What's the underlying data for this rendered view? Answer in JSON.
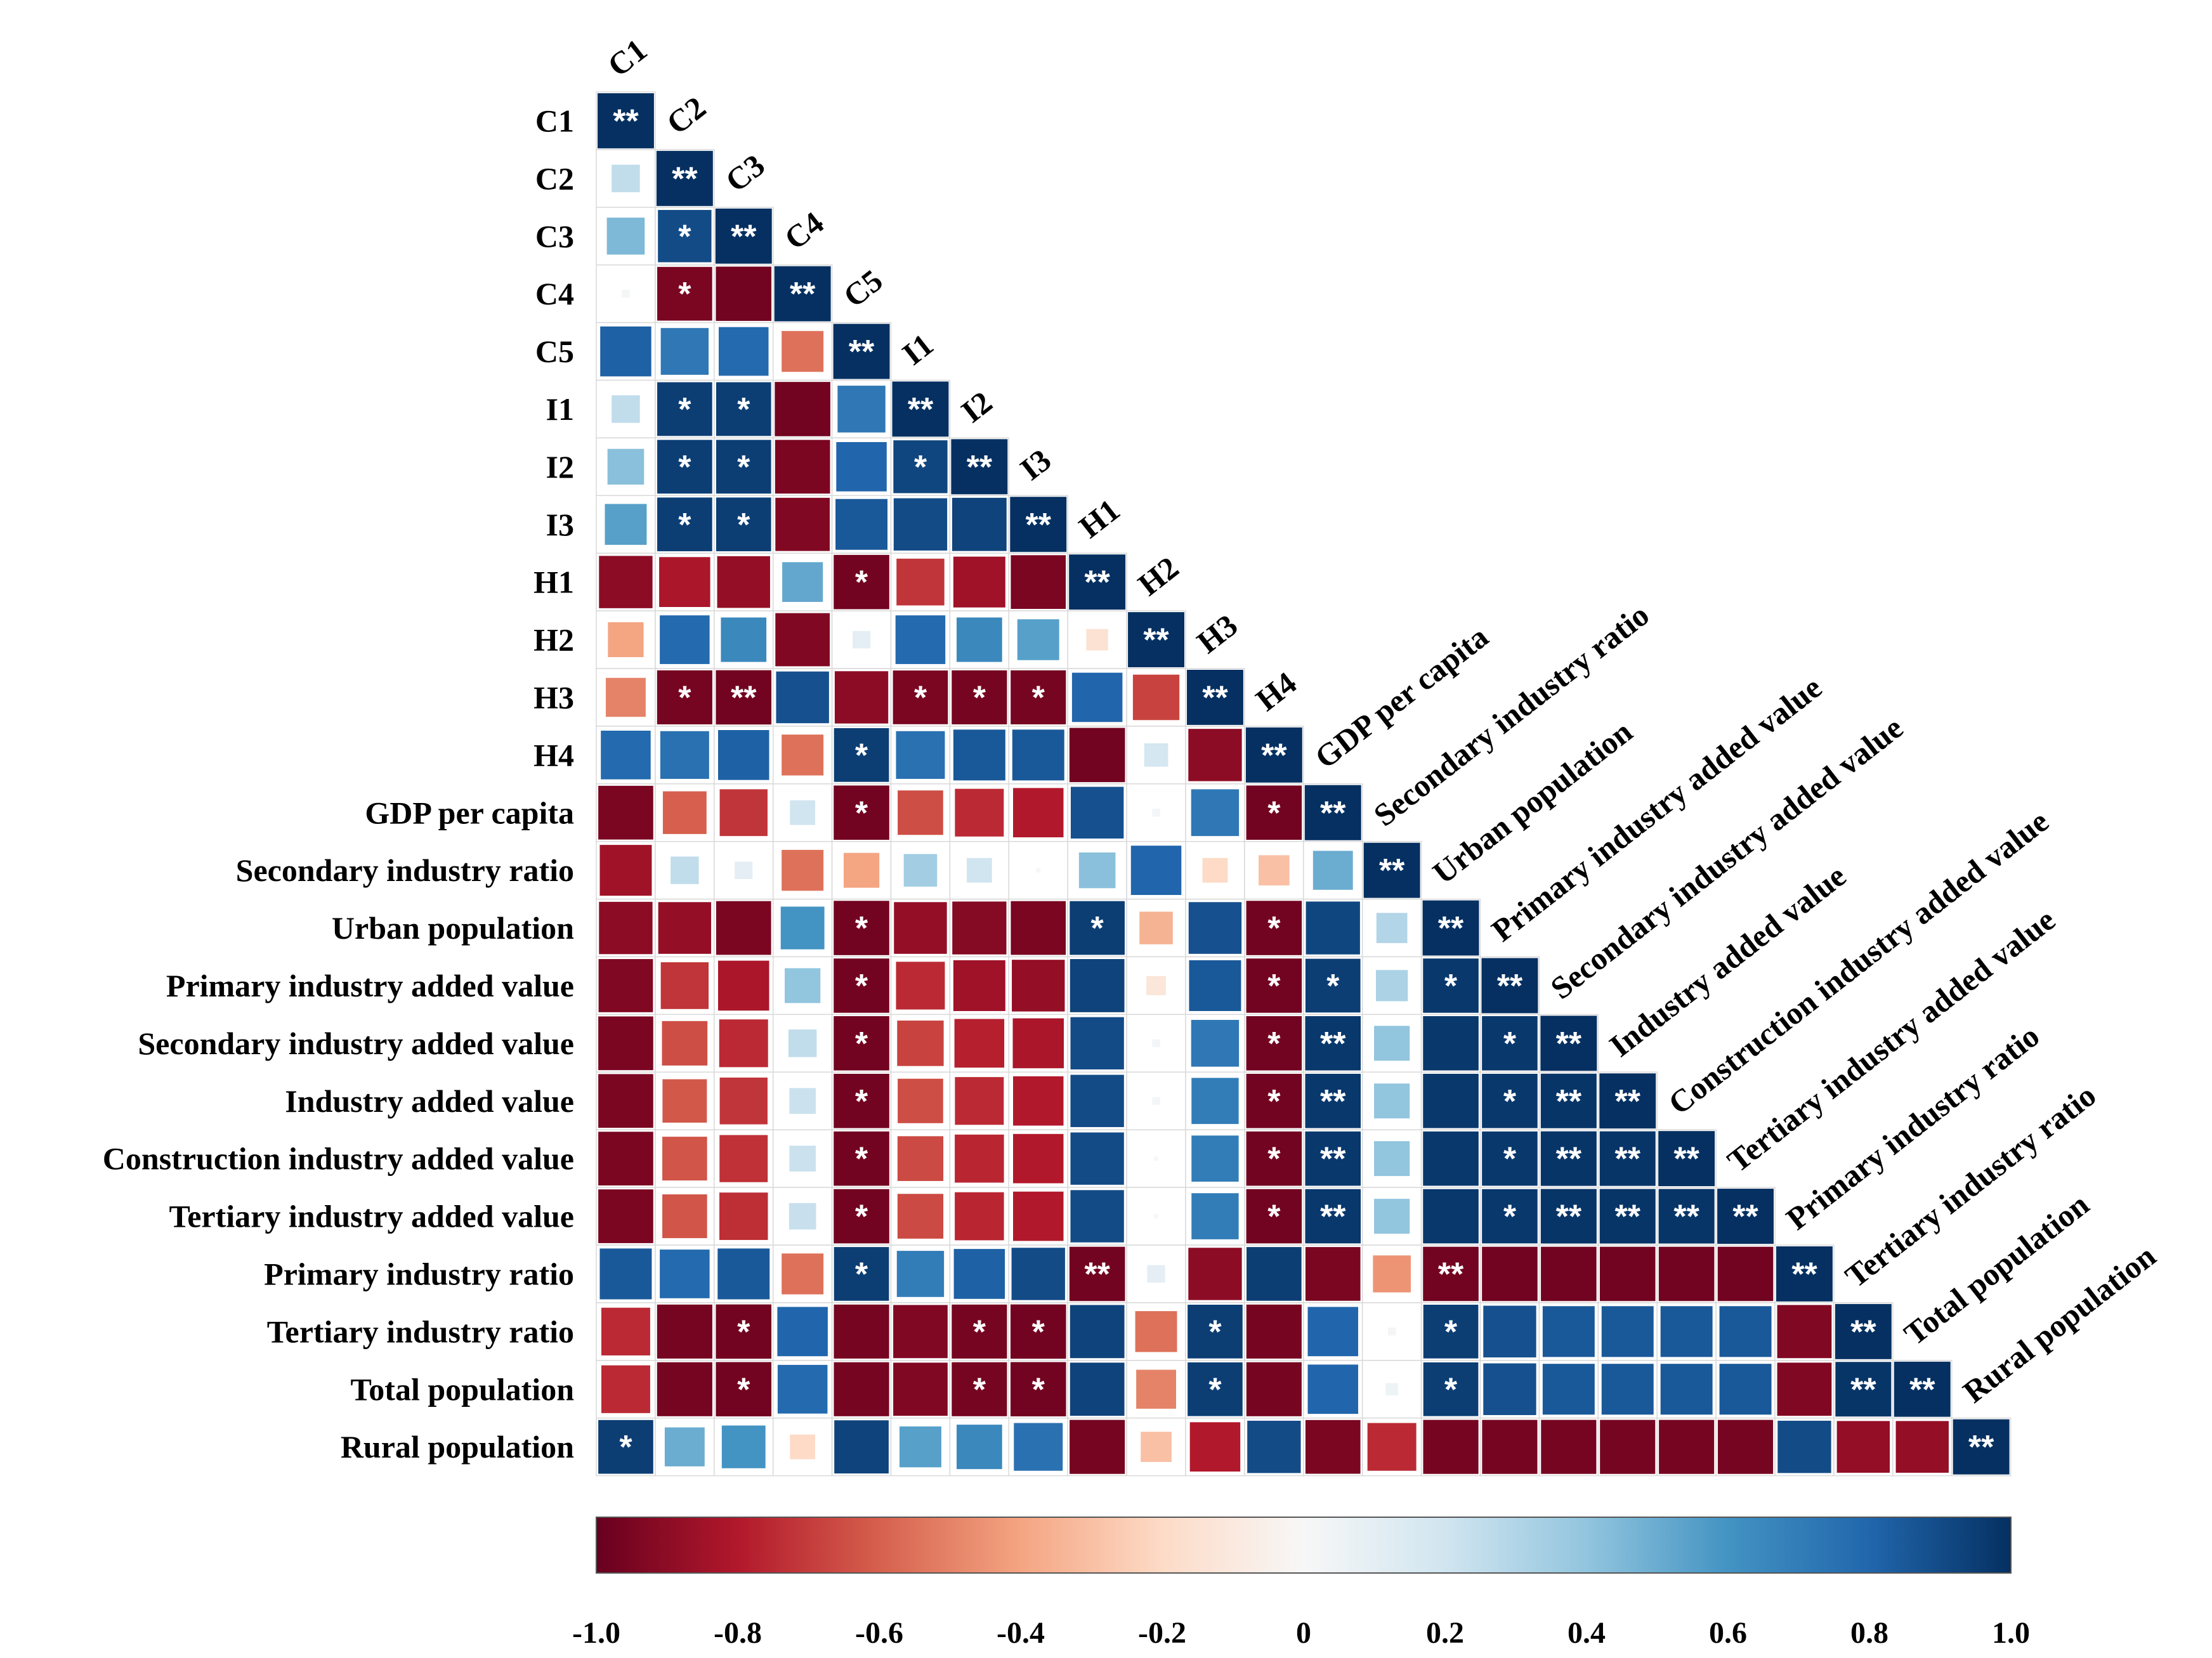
{
  "chart_data": {
    "type": "heatmap",
    "subtype": "lower-triangle correlation matrix",
    "labels": [
      "C1",
      "C2",
      "C3",
      "C4",
      "C5",
      "I1",
      "I2",
      "I3",
      "H1",
      "H2",
      "H3",
      "H4",
      "GDP per capita",
      "Secondary industry ratio",
      "Urban population ",
      "Primary  industry  added value",
      "Secondary industry  added value",
      "Industry  added value",
      "Construction  industry  added value",
      "Tertiary  industry  added value",
      "Primary  industry  ratio",
      "Tertiary  industry  ratio",
      "Total  population",
      "Rural  population"
    ],
    "column_labels": [
      "C1",
      "C2",
      "C3",
      "C4",
      "C5",
      "I1",
      "I2",
      "I3",
      "H1",
      "H2",
      "H3",
      "H4",
      "GDP per capita",
      "Secondary industry  ratio",
      "Urban population",
      "Primary  industry  added value",
      "Secondary industry  added value",
      "Industry  added value",
      "Construction  industry  added value",
      "Tertiary  industry  added value",
      "Primary  industry  ratio",
      "Tertiary  industry  ratio",
      "Total population",
      "Rural population"
    ],
    "values": [
      [
        1.0
      ],
      [
        0.25,
        1.0
      ],
      [
        0.45,
        0.9,
        1.0
      ],
      [
        0.02,
        -0.95,
        -0.97,
        1.0
      ],
      [
        0.82,
        0.72,
        0.78,
        -0.55,
        1.0
      ],
      [
        0.25,
        0.95,
        0.95,
        -0.97,
        0.72,
        1.0
      ],
      [
        0.42,
        0.95,
        0.95,
        -0.95,
        0.8,
        0.92,
        1.0
      ],
      [
        0.55,
        0.95,
        0.95,
        -0.93,
        0.85,
        0.9,
        0.93,
        1.0
      ],
      [
        -0.9,
        -0.82,
        -0.88,
        0.52,
        -0.97,
        -0.72,
        -0.85,
        -0.95,
        1.0
      ],
      [
        -0.4,
        0.78,
        0.65,
        -0.93,
        0.1,
        0.78,
        0.65,
        0.55,
        -0.15,
        1.0
      ],
      [
        -0.5,
        -0.96,
        -0.97,
        0.88,
        -0.9,
        -0.95,
        -0.96,
        -0.96,
        0.8,
        -0.68,
        1.0
      ],
      [
        0.78,
        0.75,
        0.82,
        -0.55,
        0.95,
        0.75,
        0.85,
        0.85,
        -0.97,
        0.18,
        -0.9,
        1.0
      ],
      [
        -0.95,
        -0.6,
        -0.72,
        0.2,
        -0.97,
        -0.65,
        -0.75,
        -0.8,
        0.88,
        0.02,
        0.72,
        -0.97,
        1.0
      ],
      [
        -0.85,
        0.25,
        0.1,
        -0.55,
        -0.4,
        0.35,
        0.2,
        0.0,
        0.42,
        0.8,
        -0.2,
        -0.3,
        0.5,
        1.0
      ],
      [
        -0.9,
        -0.88,
        -0.95,
        0.6,
        -0.97,
        -0.88,
        -0.92,
        -0.95,
        0.95,
        -0.35,
        0.88,
        -0.97,
        0.92,
        0.3,
        1.0
      ],
      [
        -0.93,
        -0.72,
        -0.82,
        0.4,
        -0.97,
        -0.75,
        -0.85,
        -0.88,
        0.93,
        -0.12,
        0.85,
        -0.97,
        0.95,
        0.32,
        0.97,
        1.0
      ],
      [
        -0.95,
        -0.65,
        -0.75,
        0.25,
        -0.97,
        -0.68,
        -0.78,
        -0.82,
        0.9,
        0.02,
        0.72,
        -0.97,
        0.97,
        0.4,
        0.97,
        0.97,
        1.0
      ],
      [
        -0.95,
        -0.62,
        -0.72,
        0.22,
        -0.97,
        -0.65,
        -0.75,
        -0.8,
        0.9,
        0.02,
        0.7,
        -0.97,
        0.97,
        0.4,
        0.97,
        0.97,
        0.98,
        1.0
      ],
      [
        -0.95,
        -0.63,
        -0.73,
        0.22,
        -0.97,
        -0.66,
        -0.76,
        -0.8,
        0.9,
        0.0,
        0.7,
        -0.97,
        0.97,
        0.4,
        0.97,
        0.97,
        0.98,
        0.98,
        1.0
      ],
      [
        -0.95,
        -0.63,
        -0.74,
        0.23,
        -0.97,
        -0.66,
        -0.76,
        -0.8,
        0.9,
        0.0,
        0.7,
        -0.97,
        0.97,
        0.4,
        0.97,
        0.97,
        0.98,
        0.98,
        0.98,
        1.0
      ],
      [
        0.85,
        0.78,
        0.85,
        -0.55,
        0.95,
        0.7,
        0.82,
        0.9,
        -0.97,
        0.1,
        -0.9,
        0.95,
        -0.95,
        -0.45,
        -0.97,
        -0.97,
        -0.97,
        -0.97,
        -0.97,
        -0.97,
        1.0
      ],
      [
        -0.75,
        -0.96,
        -0.97,
        0.8,
        -0.96,
        -0.93,
        -0.96,
        -0.97,
        0.93,
        -0.55,
        0.95,
        -0.96,
        0.8,
        0.02,
        0.95,
        0.88,
        0.85,
        0.85,
        0.85,
        0.85,
        -0.93,
        1.0
      ],
      [
        -0.75,
        -0.96,
        -0.97,
        0.78,
        -0.96,
        -0.93,
        -0.96,
        -0.97,
        0.93,
        -0.5,
        0.95,
        -0.96,
        0.8,
        0.05,
        0.95,
        0.88,
        0.85,
        0.85,
        0.85,
        0.85,
        -0.93,
        0.98,
        1.0
      ],
      [
        0.95,
        0.5,
        0.6,
        -0.2,
        0.93,
        0.55,
        0.65,
        0.75,
        -0.96,
        -0.3,
        -0.8,
        0.9,
        -0.95,
        -0.75,
        -0.96,
        -0.96,
        -0.96,
        -0.96,
        -0.96,
        -0.96,
        0.9,
        -0.88,
        -0.88,
        1.0
      ]
    ],
    "significance": [
      [
        "**"
      ],
      [
        "",
        "**"
      ],
      [
        "",
        "*",
        "**"
      ],
      [
        "",
        "*",
        "",
        "**"
      ],
      [
        "",
        "",
        "",
        "",
        "**"
      ],
      [
        "",
        "*",
        "*",
        "",
        "",
        "**"
      ],
      [
        "",
        "*",
        "*",
        "",
        "",
        "*",
        "**"
      ],
      [
        "",
        "*",
        "*",
        "",
        "",
        "",
        "",
        "**"
      ],
      [
        "",
        "",
        "",
        "",
        "*",
        "",
        "",
        "",
        "**"
      ],
      [
        "",
        "",
        "",
        "",
        "",
        "",
        "",
        "",
        "",
        "**"
      ],
      [
        "",
        "*",
        "**",
        "",
        "",
        "*",
        "*",
        "*",
        "",
        "",
        "**"
      ],
      [
        "",
        "",
        "",
        "",
        "*",
        "",
        "",
        "",
        "",
        "",
        "",
        "**"
      ],
      [
        "",
        "",
        "",
        "",
        "*",
        "",
        "",
        "",
        "",
        "",
        "",
        "*",
        "**"
      ],
      [
        "",
        "",
        "",
        "",
        "",
        "",
        "",
        "",
        "",
        "",
        "",
        "",
        "",
        "**"
      ],
      [
        "",
        "",
        "",
        "",
        "*",
        "",
        "",
        "",
        "*",
        "",
        "",
        "*",
        "",
        "",
        "**"
      ],
      [
        "",
        "",
        "",
        "",
        "*",
        "",
        "",
        "",
        "",
        "",
        "",
        "*",
        "*",
        "",
        "*",
        "**"
      ],
      [
        "",
        "",
        "",
        "",
        "*",
        "",
        "",
        "",
        "",
        "",
        "",
        "*",
        "**",
        "",
        "",
        "*",
        "**"
      ],
      [
        "",
        "",
        "",
        "",
        "*",
        "",
        "",
        "",
        "",
        "",
        "",
        "*",
        "**",
        "",
        "",
        "*",
        "**",
        "**"
      ],
      [
        "",
        "",
        "",
        "",
        "*",
        "",
        "",
        "",
        "",
        "",
        "",
        "*",
        "**",
        "",
        "",
        "*",
        "**",
        "**",
        "**"
      ],
      [
        "",
        "",
        "",
        "",
        "*",
        "",
        "",
        "",
        "",
        "",
        "",
        "*",
        "**",
        "",
        "",
        "*",
        "**",
        "**",
        "**",
        "**"
      ],
      [
        "",
        "",
        "",
        "",
        "*",
        "",
        "",
        "",
        "**",
        "",
        "",
        "",
        "",
        "",
        "**",
        "",
        "",
        "",
        "",
        "",
        "**"
      ],
      [
        "",
        "",
        "*",
        "",
        "",
        "",
        "*",
        "*",
        "",
        "",
        "*",
        "",
        "",
        "",
        "*",
        "",
        "",
        "",
        "",
        "",
        "",
        "**"
      ],
      [
        "",
        "",
        "*",
        "",
        "",
        "",
        "*",
        "*",
        "",
        "",
        "*",
        "",
        "",
        "",
        "*",
        "",
        "",
        "",
        "",
        "",
        "",
        "**",
        "**"
      ],
      [
        "*",
        "",
        "",
        "",
        "",
        "",
        "",
        "",
        "",
        "",
        "",
        "",
        "",
        "",
        "",
        "",
        "",
        "",
        "",
        "",
        "",
        "",
        "",
        "**"
      ]
    ],
    "colorbar": {
      "range": [
        -1.0,
        1.0
      ],
      "ticks": [
        "-1.0",
        "-0.8",
        "-0.6",
        "-0.4",
        "-0.2",
        "0",
        "0.2",
        "0.4",
        "0.6",
        "0.8",
        "1.0"
      ],
      "colors": [
        "#67001f",
        "#b2182b",
        "#d6604d",
        "#f4a582",
        "#fddbc7",
        "#f7f7f7",
        "#d1e5f0",
        "#92c5de",
        "#4393c3",
        "#2166ac",
        "#053061"
      ]
    }
  }
}
